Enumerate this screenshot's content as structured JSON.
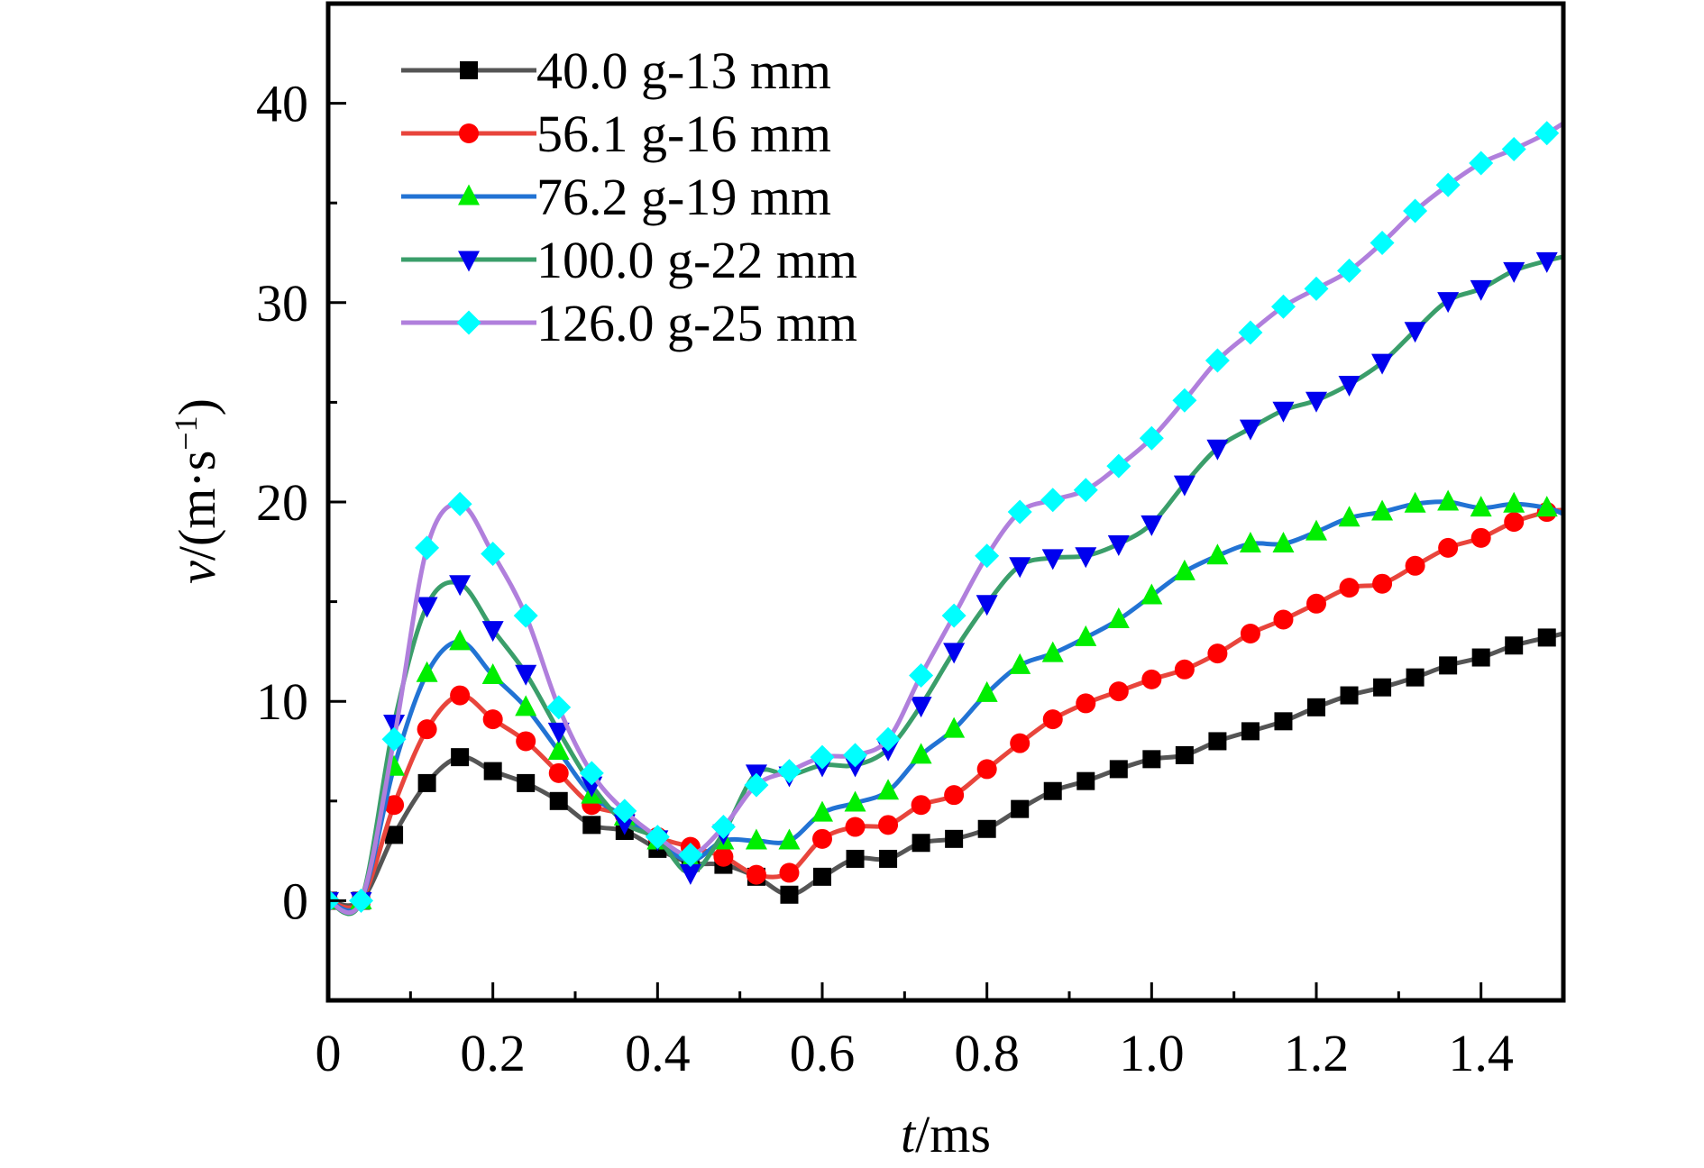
{
  "chart_data": {
    "type": "line",
    "title": "",
    "xlabel_italic": "t",
    "xlabel_rest": "/ms",
    "ylabel_italic": "v",
    "ylabel_rest": "/(m·s",
    "ylabel_sup": "−1",
    "ylabel_close": ")",
    "xlim": [
      0,
      1.5
    ],
    "ylim": [
      -5,
      45
    ],
    "xticks": [
      0,
      0.2,
      0.4,
      0.6,
      0.8,
      1.0,
      1.2,
      1.4
    ],
    "xtick_labels": [
      "0",
      "0.2",
      "0.4",
      "0.6",
      "0.8",
      "1.0",
      "1.2",
      "1.4"
    ],
    "xminor_ticks": [
      0.1,
      0.3,
      0.5,
      0.7,
      0.9,
      1.1,
      1.3
    ],
    "yticks": [
      0,
      10,
      20,
      30,
      40
    ],
    "ytick_labels": [
      "0",
      "10",
      "20",
      "30",
      "40"
    ],
    "yminor_ticks": [
      5,
      15,
      25,
      35
    ],
    "grid": false,
    "legend_position": "top-left",
    "x": [
      0,
      0.04,
      0.08,
      0.12,
      0.16,
      0.2,
      0.24,
      0.28,
      0.32,
      0.36,
      0.4,
      0.44,
      0.48,
      0.52,
      0.56,
      0.6,
      0.64,
      0.68,
      0.72,
      0.76,
      0.8,
      0.84,
      0.88,
      0.92,
      0.96,
      1.0,
      1.04,
      1.08,
      1.12,
      1.16,
      1.2,
      1.24,
      1.28,
      1.32,
      1.36,
      1.4,
      1.44,
      1.48
    ],
    "series": [
      {
        "name": "40.0 g-13 mm",
        "line_color": "#555555",
        "marker_color": "#000000",
        "marker": "square",
        "values": [
          0,
          0,
          3.3,
          5.9,
          7.2,
          6.5,
          5.9,
          5.0,
          3.8,
          3.5,
          2.6,
          1.9,
          1.8,
          1.2,
          0.3,
          1.2,
          2.1,
          2.1,
          2.9,
          3.1,
          3.6,
          4.6,
          5.5,
          6.0,
          6.6,
          7.1,
          7.3,
          8.0,
          8.5,
          9.0,
          9.7,
          10.3,
          10.7,
          11.2,
          11.8,
          12.2,
          12.8,
          13.2
        ],
        "end_value": 13.4
      },
      {
        "name": "56.1 g-16 mm",
        "line_color": "#e8453c",
        "marker_color": "#ff0000",
        "marker": "circle",
        "values": [
          0,
          0,
          4.8,
          8.6,
          10.3,
          9.1,
          8.0,
          6.4,
          4.8,
          4.3,
          3.2,
          2.7,
          2.2,
          1.3,
          1.4,
          3.1,
          3.7,
          3.8,
          4.8,
          5.3,
          6.6,
          7.9,
          9.1,
          9.9,
          10.5,
          11.1,
          11.6,
          12.4,
          13.4,
          14.1,
          14.9,
          15.7,
          15.9,
          16.8,
          17.7,
          18.2,
          19.0,
          19.5
        ],
        "end_value": 19.6
      },
      {
        "name": "76.2 g-19 mm",
        "line_color": "#2273d4",
        "marker_color": "#00ee00",
        "marker": "triangle-up",
        "values": [
          0,
          0,
          6.7,
          11.4,
          13.0,
          11.3,
          9.7,
          7.5,
          5.3,
          4.2,
          3.0,
          2.0,
          3.0,
          3.0,
          3.0,
          4.4,
          4.9,
          5.5,
          7.3,
          8.6,
          10.4,
          11.8,
          12.4,
          13.2,
          14.1,
          15.3,
          16.5,
          17.3,
          17.9,
          17.9,
          18.5,
          19.2,
          19.5,
          19.9,
          20.0,
          19.7,
          19.9,
          19.7
        ],
        "end_value": 19.4
      },
      {
        "name": "100.0 g-22 mm",
        "line_color": "#3a9e6a",
        "marker_color": "#0000ee",
        "marker": "triangle-down",
        "values": [
          0,
          0,
          8.9,
          14.8,
          15.9,
          13.6,
          11.4,
          8.5,
          5.8,
          3.9,
          3.1,
          1.4,
          3.4,
          6.4,
          6.3,
          6.8,
          6.8,
          7.6,
          9.8,
          12.5,
          14.9,
          16.8,
          17.2,
          17.3,
          17.9,
          18.9,
          20.9,
          22.7,
          23.7,
          24.6,
          25.1,
          25.9,
          27.0,
          28.6,
          30.1,
          30.7,
          31.6,
          32.1
        ],
        "end_value": 32.3
      },
      {
        "name": "126.0 g-25 mm",
        "line_color": "#b07fdc",
        "marker_color": "#00ffff",
        "marker": "diamond",
        "values": [
          0,
          0,
          8.1,
          17.7,
          19.9,
          17.4,
          14.3,
          9.7,
          6.4,
          4.5,
          3.2,
          2.3,
          3.7,
          5.8,
          6.5,
          7.2,
          7.3,
          8.1,
          11.3,
          14.3,
          17.3,
          19.5,
          20.1,
          20.6,
          21.8,
          23.2,
          25.1,
          27.1,
          28.5,
          29.8,
          30.7,
          31.6,
          33.0,
          34.6,
          35.9,
          37.0,
          37.7,
          38.5
        ],
        "end_value": 39.0
      }
    ]
  }
}
